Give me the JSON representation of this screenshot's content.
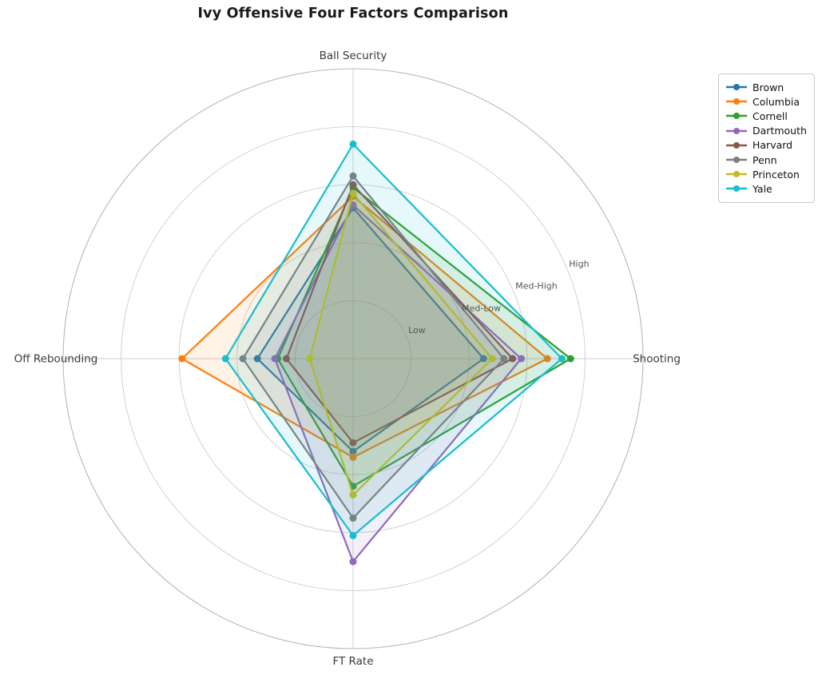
{
  "chart_data": {
    "type": "radar",
    "title": "Ivy Offensive Four Factors Comparison",
    "categories": [
      "Ball Security",
      "Shooting",
      "FT Rate",
      "Off Rebounding"
    ],
    "axis_angles_deg": [
      90,
      0,
      -90,
      180
    ],
    "r_max": 1.0,
    "grid": true,
    "rlabel_angle_deg": 22.5,
    "radial_ticks": [
      {
        "label": "Low",
        "value": 0.2
      },
      {
        "label": "Med-Low",
        "value": 0.4
      },
      {
        "label": "Med-High",
        "value": 0.6
      },
      {
        "label": "High",
        "value": 0.8
      }
    ],
    "legend_position": "upper right",
    "series": [
      {
        "name": "Brown",
        "color": "#1f77b4",
        "values": [
          0.52,
          0.45,
          0.32,
          0.33
        ]
      },
      {
        "name": "Columbia",
        "color": "#ff7f0e",
        "values": [
          0.56,
          0.67,
          0.34,
          0.59
        ]
      },
      {
        "name": "Cornell",
        "color": "#2ca02c",
        "values": [
          0.59,
          0.75,
          0.44,
          0.26
        ]
      },
      {
        "name": "Dartmouth",
        "color": "#9467bd",
        "values": [
          0.53,
          0.58,
          0.7,
          0.27
        ]
      },
      {
        "name": "Harvard",
        "color": "#8c564b",
        "values": [
          0.6,
          0.55,
          0.29,
          0.23
        ]
      },
      {
        "name": "Penn",
        "color": "#7f7f7f",
        "values": [
          0.63,
          0.52,
          0.55,
          0.38
        ]
      },
      {
        "name": "Princeton",
        "color": "#bcbd22",
        "values": [
          0.57,
          0.48,
          0.47,
          0.15
        ]
      },
      {
        "name": "Yale",
        "color": "#17becf",
        "values": [
          0.74,
          0.72,
          0.61,
          0.44
        ]
      }
    ],
    "style": {
      "grid_color": "#cdcdcd",
      "outer_ring_color": "#b8b8b8",
      "title_color": "#1a1a1a",
      "axis_label_color": "#3a3a3a",
      "tick_label_color": "#555555",
      "fill_opacity": 0.1,
      "line_width": 2.2,
      "marker_radius": 4.5
    }
  }
}
